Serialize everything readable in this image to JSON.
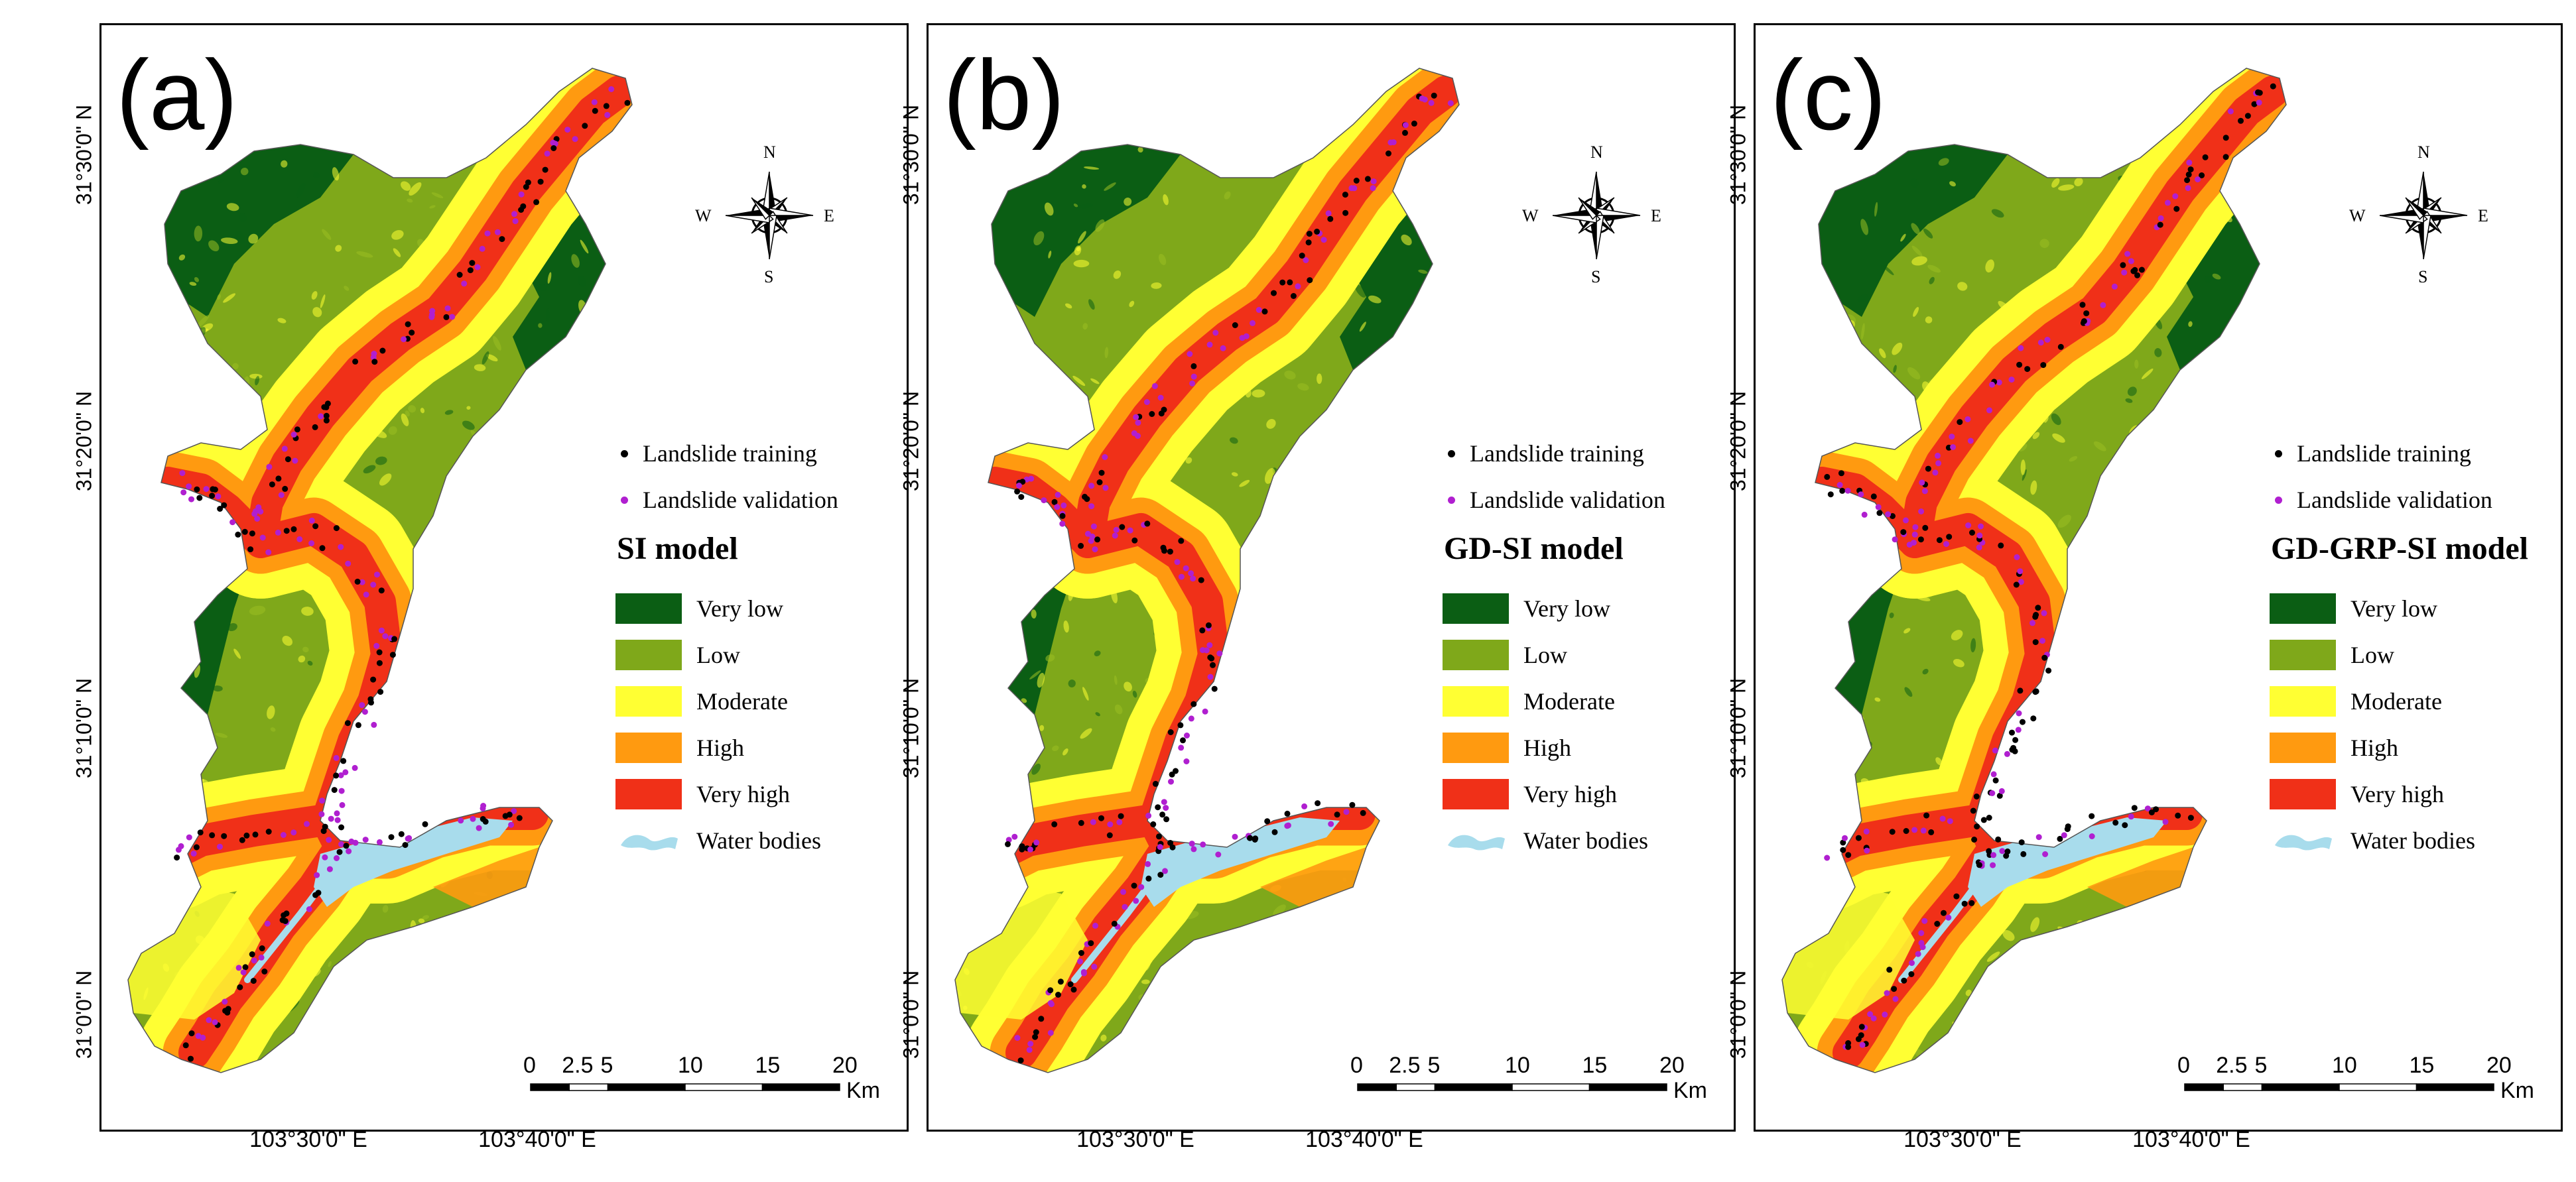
{
  "panels": [
    {
      "label": "(a)",
      "model_title": "SI model"
    },
    {
      "label": "(b)",
      "model_title": "GD-SI model"
    },
    {
      "label": "(c)",
      "model_title": "GD-GRP-SI model"
    }
  ],
  "latitude_labels": [
    "31°30'0\" N",
    "31°20'0\" N",
    "31°10'0\" N",
    "31°0'0\" N"
  ],
  "longitude_labels": [
    "103°30'0\" E",
    "103°40'0\" E"
  ],
  "compass": {
    "n": "N",
    "s": "S",
    "e": "E",
    "w": "W"
  },
  "legend": {
    "points": [
      {
        "label": "Landslide training",
        "color": "#000000"
      },
      {
        "label": "Landslide validation",
        "color": "#b01fd0"
      }
    ],
    "classes": [
      {
        "label": "Very low",
        "color": "#0b5e14"
      },
      {
        "label": "Low",
        "color": "#7fa81a"
      },
      {
        "label": "Moderate",
        "color": "#ffff33"
      },
      {
        "label": "High",
        "color": "#ff9a10"
      },
      {
        "label": "Very high",
        "color": "#f03018"
      }
    ],
    "water": {
      "label": "Water bodies",
      "color": "#a8dcec"
    }
  },
  "scale_bar": {
    "ticks": [
      "0",
      "2.5",
      "5",
      "10",
      "15",
      "20"
    ],
    "unit": "Km"
  }
}
